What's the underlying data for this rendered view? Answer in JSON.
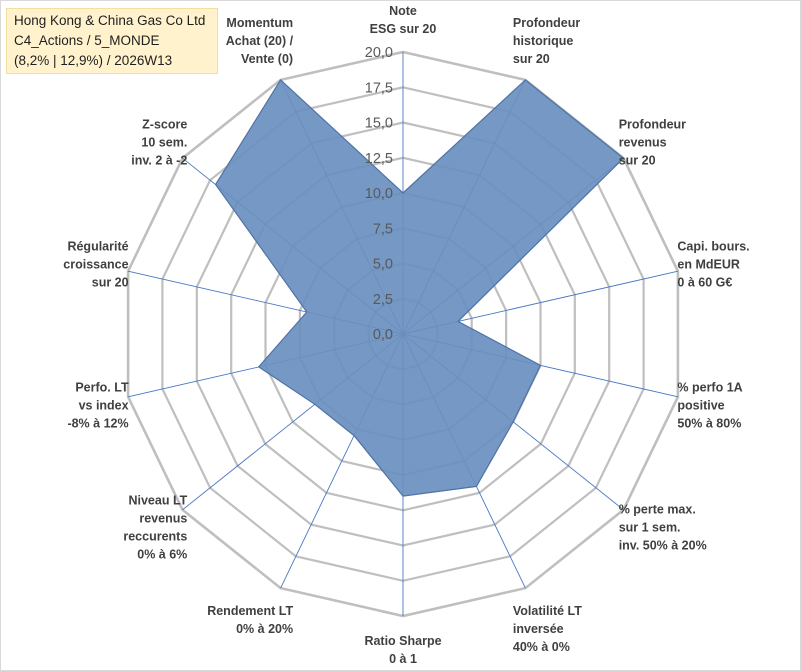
{
  "title_box": {
    "line1": "Hong Kong & China Gas Co Ltd",
    "line2": "C4_Actions / 5_MONDE",
    "line3": "(8,2% | 12,9%) / 2026W13"
  },
  "colors": {
    "fill": "#6a8fbf",
    "stroke": "#4f73a6",
    "grid": "#bfbfbf",
    "spoke": "#4a78c2",
    "title_bg": "#fff2cc"
  },
  "chart_data": {
    "type": "radar",
    "rmax": 20,
    "grid_levels": 8,
    "tick_labels": [
      "0,0",
      "2,5",
      "5,0",
      "7,5",
      "10,0",
      "12,5",
      "15,0",
      "17,5",
      "20,0"
    ],
    "axes": [
      {
        "lines": [
          "Note",
          "ESG sur 20"
        ],
        "value": 10
      },
      {
        "lines": [
          "Profondeur",
          "historique",
          "sur 20"
        ],
        "value": 20
      },
      {
        "lines": [
          "Profondeur",
          "revenus",
          "sur 20"
        ],
        "value": 20
      },
      {
        "lines": [
          "Capi. bours.",
          "en MdEUR",
          "0 à 60 G€"
        ],
        "value": 4
      },
      {
        "lines": [
          "% perfo 1A",
          "positive",
          "50% à 80%"
        ],
        "value": 10
      },
      {
        "lines": [
          "% perte max.",
          "sur 1 sem.",
          "inv. 50% à 20%"
        ],
        "value": 10
      },
      {
        "lines": [
          "Volatilité LT",
          "inversée",
          "40% à 0%"
        ],
        "value": 12
      },
      {
        "lines": [
          "Ratio Sharpe",
          "0 à 1"
        ],
        "value": 11.5
      },
      {
        "lines": [
          "Rendement LT",
          "0% à 20%"
        ],
        "value": 8
      },
      {
        "lines": [
          "Niveau LT",
          "revenus",
          "reccurents",
          "0% à 6%"
        ],
        "value": 8
      },
      {
        "lines": [
          "Perfo. LT",
          "vs index",
          "-8% à 12%"
        ],
        "value": 10.5
      },
      {
        "lines": [
          "Régularité",
          "croissance",
          "sur 20"
        ],
        "value": 7
      },
      {
        "lines": [
          "Z-score",
          "10 sem.",
          "inv. 2 à -2"
        ],
        "value": 17
      },
      {
        "lines": [
          "Momentum",
          "Achat (20) /",
          "Vente (0)"
        ],
        "value": 20
      }
    ]
  }
}
